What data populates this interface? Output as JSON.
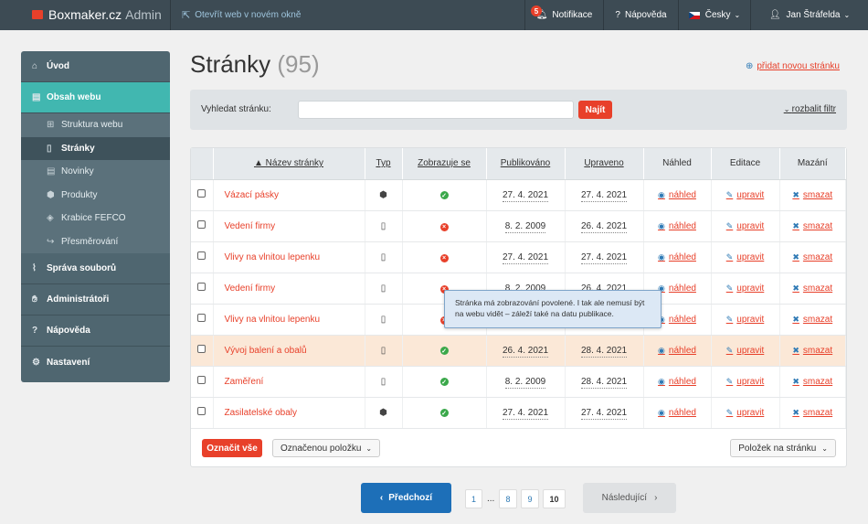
{
  "topbar": {
    "brand": "Boxmaker.cz",
    "brand_suffix": "Admin",
    "external": "Otevřít web v novém okně",
    "notifications": "Notifikace",
    "notif_count": "5",
    "help": "Nápověda",
    "lang": "Česky",
    "user": "Jan Štráfelda"
  },
  "sidebar": {
    "items": [
      {
        "label": "Úvod"
      },
      {
        "label": "Obsah webu"
      },
      {
        "label": "Správa souborů"
      },
      {
        "label": "Administrátoři"
      },
      {
        "label": "Nápověda"
      },
      {
        "label": "Nastavení"
      }
    ],
    "sub": [
      {
        "label": "Struktura webu"
      },
      {
        "label": "Stránky"
      },
      {
        "label": "Novinky"
      },
      {
        "label": "Produkty"
      },
      {
        "label": "Krabice FEFCO"
      },
      {
        "label": "Přesměrování"
      }
    ]
  },
  "page": {
    "title": "Stránky",
    "count": "(95)",
    "add": "přidat novou stránku"
  },
  "search": {
    "label": "Vyhledat stránku:",
    "button": "Najít",
    "expand": "rozbalit filtr"
  },
  "table": {
    "headers": [
      "▲ Název stránky",
      "Typ",
      "Zobrazuje se",
      "Publikováno",
      "Upraveno",
      "Náhled",
      "Editace",
      "Mazání"
    ],
    "preview": "náhled",
    "edit": "upravit",
    "delete": "smazat",
    "rows": [
      {
        "name": "Vázací pásky",
        "type": "product",
        "visible": true,
        "published": "27. 4. 2021",
        "updated": "27. 4. 2021"
      },
      {
        "name": "Vedení firmy",
        "type": "page",
        "visible": false,
        "published": "8. 2. 2009",
        "updated": "26. 4. 2021"
      },
      {
        "name": "Vlivy na vlnitou lepenku",
        "type": "page",
        "visible": false,
        "published": "27. 4. 2021",
        "updated": "27. 4. 2021"
      },
      {
        "name": "Vedení firmy",
        "type": "page",
        "visible": false,
        "published": "8. 2. 2009",
        "updated": "26. 4. 2021"
      },
      {
        "name": "Vlivy na vlnitou lepenku",
        "type": "page",
        "visible": false,
        "published": "27. 4. 2021",
        "updated": "27. 4. 2021"
      },
      {
        "name": "Vývoj balení a obalů",
        "type": "page",
        "visible": true,
        "published": "26. 4. 2021",
        "updated": "28. 4. 2021"
      },
      {
        "name": "Zaměření",
        "type": "page",
        "visible": true,
        "published": "8. 2. 2009",
        "updated": "28. 4. 2021"
      },
      {
        "name": "Zasilatelské obaly",
        "type": "product",
        "visible": true,
        "published": "27. 4. 2021",
        "updated": "27. 4. 2021"
      }
    ]
  },
  "footer": {
    "mark_all": "Označit vše",
    "selected": "Označenou položku",
    "per_page": "Položek na stránku"
  },
  "tooltip": "Stránka má zobrazování povolené. I tak ale nemusí být na webu vidět – záleží také na datu publikace.",
  "pager": {
    "prev": "Předchozí",
    "next": "Následující",
    "pages": [
      "1",
      "8",
      "9",
      "10"
    ],
    "ellipsis": "..."
  }
}
